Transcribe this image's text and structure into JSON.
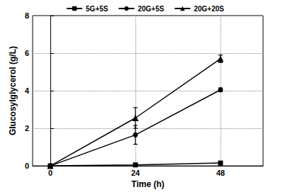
{
  "chart_data": {
    "type": "line",
    "x_label": "Time (h)",
    "y_label": "Glucosylglycerol (g/L)",
    "x": [
      0,
      24,
      48
    ],
    "xlim": [
      -5,
      60
    ],
    "xticks": [
      0,
      24,
      48
    ],
    "ylim": [
      0,
      8
    ],
    "yticks": [
      0,
      2,
      4,
      6,
      8
    ],
    "grid": true,
    "legend": "top",
    "series": [
      {
        "name": "5G+5S",
        "color": "#000000",
        "marker": "square",
        "values": [
          0,
          0.05,
          0.15
        ],
        "errors": [
          0,
          0.02,
          0.05
        ]
      },
      {
        "name": "20G+5S",
        "color": "#000000",
        "marker": "circle",
        "values": [
          0,
          1.65,
          4.05
        ],
        "errors": [
          0,
          0.5,
          0.1
        ]
      },
      {
        "name": "20G+20S",
        "color": "#000000",
        "marker": "triangle",
        "values": [
          0,
          2.55,
          5.7
        ],
        "errors": [
          0,
          0.55,
          0.2
        ]
      }
    ]
  }
}
